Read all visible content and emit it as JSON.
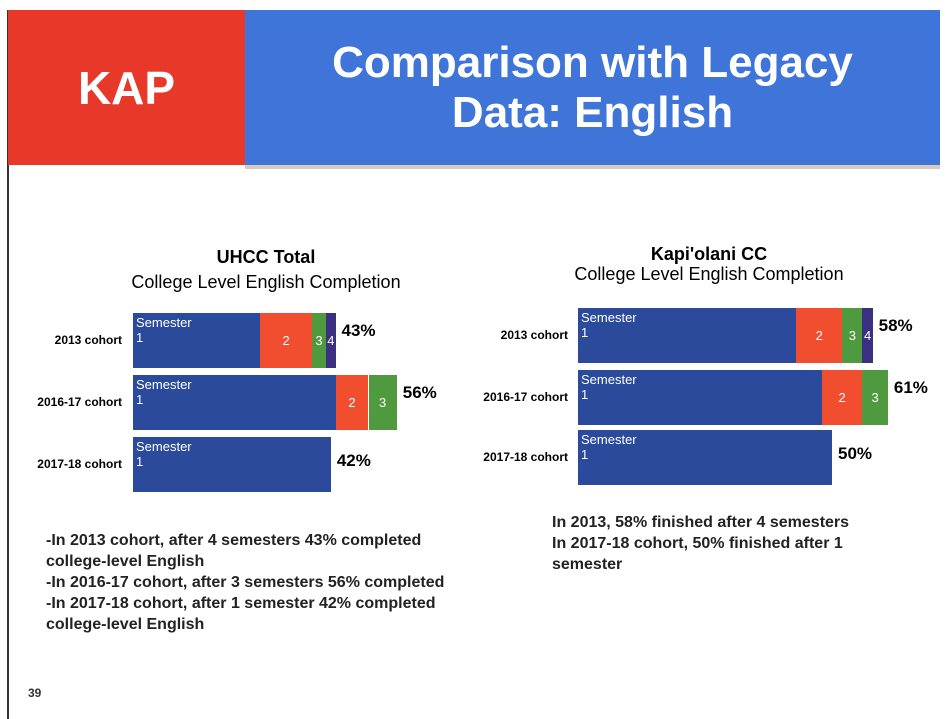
{
  "header": {
    "badge": "KAP",
    "title": "Comparison with Legacy Data: English"
  },
  "chart_data": [
    {
      "type": "bar",
      "stacked": true,
      "orientation": "horizontal",
      "title": "UHCC Total",
      "subtitle": "College Level English Completion",
      "categories": [
        "2013 cohort",
        "2016-17 cohort",
        "2017-18 cohort"
      ],
      "series": [
        {
          "name": "Semester 1",
          "color": "#2b4a9c",
          "values": [
            27,
            43,
            42
          ]
        },
        {
          "name": "2",
          "color": "#f04e2f",
          "values": [
            11,
            7,
            null
          ]
        },
        {
          "name": "3",
          "color": "#4f9a3f",
          "values": [
            3,
            6,
            null
          ]
        },
        {
          "name": "4",
          "color": "#3a2f80",
          "values": [
            2,
            null,
            null
          ]
        }
      ],
      "totals": [
        43,
        56,
        42
      ],
      "total_labels": [
        "43%",
        "56%",
        "42%"
      ]
    },
    {
      "type": "bar",
      "stacked": true,
      "orientation": "horizontal",
      "title": "Kapi'olani  CC",
      "subtitle": "College Level English Completion",
      "categories": [
        "2013 cohort",
        "2016-17 cohort",
        "2017-18 cohort"
      ],
      "series": [
        {
          "name": "Semester 1",
          "color": "#2b4a9c",
          "values": [
            43,
            48,
            50
          ]
        },
        {
          "name": "2",
          "color": "#f04e2f",
          "values": [
            9,
            8,
            null
          ]
        },
        {
          "name": "3",
          "color": "#4f9a3f",
          "values": [
            4,
            5,
            null
          ]
        },
        {
          "name": "4",
          "color": "#3a2f80",
          "values": [
            2,
            null,
            null
          ]
        }
      ],
      "totals": [
        58,
        61,
        50
      ],
      "total_labels": [
        "58%",
        "61%",
        "50%"
      ]
    }
  ],
  "notes_left": [
    "-In 2013 cohort, after 4 semesters 43% completed college-level English",
    "-In 2016-17 cohort, after 3 semesters 56% completed",
    "-In 2017-18 cohort, after 1 semester 42% completed college-level English"
  ],
  "notes_right": [
    "In 2013, 58% finished after 4 semesters",
    "In 2017-18 cohort, 50% finished after 1 semester"
  ],
  "page_number": "39"
}
